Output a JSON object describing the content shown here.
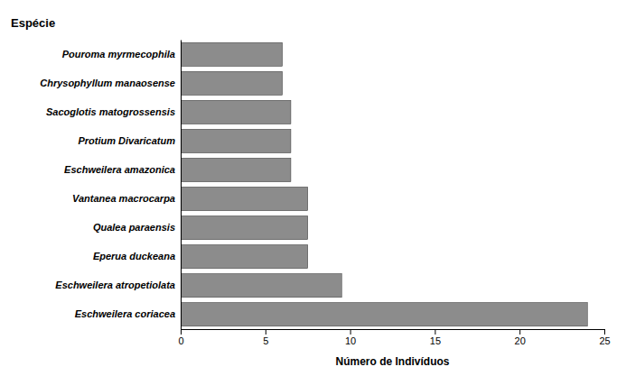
{
  "chart_data": {
    "type": "bar",
    "orientation": "horizontal",
    "categories": [
      "Eschweilera coriacea",
      "Eschweilera atropetiolata",
      "Eperua duckeana",
      "Qualea paraensis",
      "Vantanea macrocarpa",
      "Eschweilera amazonica",
      "Protium Divaricatum",
      "Sacoglotis matogrossensis",
      "Chrysophyllum manaosense",
      "Pouroma myrmecophila"
    ],
    "values": [
      24,
      9.5,
      7.5,
      7.5,
      7.5,
      6.5,
      6.5,
      6.5,
      6,
      6
    ],
    "color": "#8c8c8c",
    "xlabel": "Número de Indivíduos",
    "ylabel": "Espécie",
    "xlim": [
      0,
      25
    ],
    "xticks": [
      0,
      5,
      10,
      15,
      20,
      25
    ],
    "grid": false
  }
}
